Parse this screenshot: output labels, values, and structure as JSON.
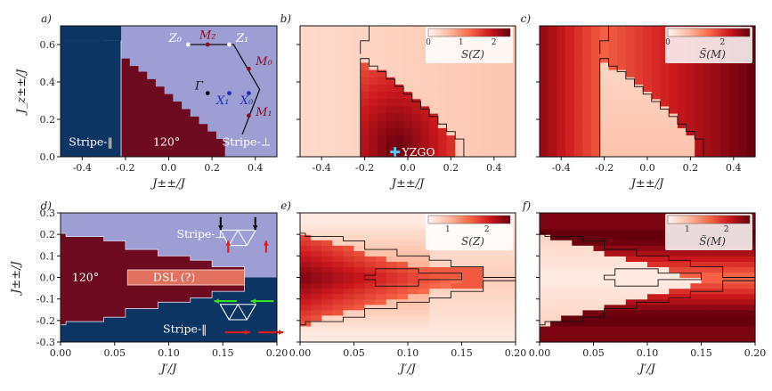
{
  "colors": {
    "stripe_par": "#0c3563",
    "stripe_perp": "#9d9fd4",
    "phase120": "#6e0a1f",
    "dsl_box": "#e1705e",
    "heat_low": "#fdf0e8",
    "heat_high": "#67000d"
  },
  "chart_data": [
    {
      "panel": "a)",
      "type": "heatmap",
      "title": "",
      "xlabel": "J_{±±}/J",
      "ylabel": "J_{z±±}/J",
      "xlim": [
        -0.5,
        0.5
      ],
      "ylim": [
        0,
        0.7
      ],
      "xticks": [
        -0.4,
        -0.2,
        0.0,
        0.2,
        0.4
      ],
      "yticks": [
        0.0,
        0.2,
        0.4,
        0.6
      ],
      "phase_labels": [
        "Stripe-‖",
        "120°",
        "Stripe-⊥"
      ],
      "bz_points": [
        "Γ",
        "Z₀",
        "M₂",
        "Z₁",
        "M₀",
        "X₁",
        "X₀",
        "M₁"
      ]
    },
    {
      "panel": "b)",
      "type": "heatmap",
      "xlabel": "J_{±±}/J",
      "xlim": [
        -0.5,
        0.5
      ],
      "ylim": [
        0,
        0.7
      ],
      "colorbar": {
        "label": "S(Z)",
        "ticks": [
          "0",
          "1",
          "2"
        ],
        "range": [
          0,
          2.5
        ]
      },
      "marker_label": "YZGO",
      "marker": {
        "x": -0.06,
        "y": 0.025
      }
    },
    {
      "panel": "c)",
      "type": "heatmap",
      "xlabel": "J_{±±}/J",
      "xlim": [
        -0.5,
        0.5
      ],
      "ylim": [
        0,
        0.7
      ],
      "colorbar": {
        "label": "S̃(M)",
        "ticks": [
          "0",
          "2"
        ],
        "range": [
          0,
          3.0
        ]
      }
    },
    {
      "panel": "d)",
      "type": "heatmap",
      "xlabel": "J′/J",
      "ylabel": "J_{±±}/J",
      "xlim": [
        0,
        0.2
      ],
      "ylim": [
        -0.3,
        0.3
      ],
      "xticks": [
        0.0,
        0.05,
        0.1,
        0.15,
        0.2
      ],
      "yticks": [
        -0.3,
        -0.2,
        -0.1,
        0.0,
        0.1,
        0.2,
        0.3
      ],
      "phase_labels": [
        "Stripe-⊥",
        "120°",
        "DSL (?)",
        "Stripe-‖"
      ]
    },
    {
      "panel": "e)",
      "type": "heatmap",
      "xlabel": "J′/J",
      "xlim": [
        0,
        0.2
      ],
      "ylim": [
        -0.3,
        0.3
      ],
      "colorbar": {
        "label": "S(Z)",
        "ticks": [
          "1",
          "2"
        ],
        "range": [
          0.5,
          2.6
        ]
      }
    },
    {
      "panel": "f)",
      "type": "heatmap",
      "xlabel": "J′/J",
      "xlim": [
        0,
        0.2
      ],
      "ylim": [
        -0.3,
        0.3
      ],
      "colorbar": {
        "label": "S̃(M)",
        "ticks": [
          "1",
          "2"
        ],
        "range": [
          0.5,
          2.6
        ]
      }
    }
  ]
}
